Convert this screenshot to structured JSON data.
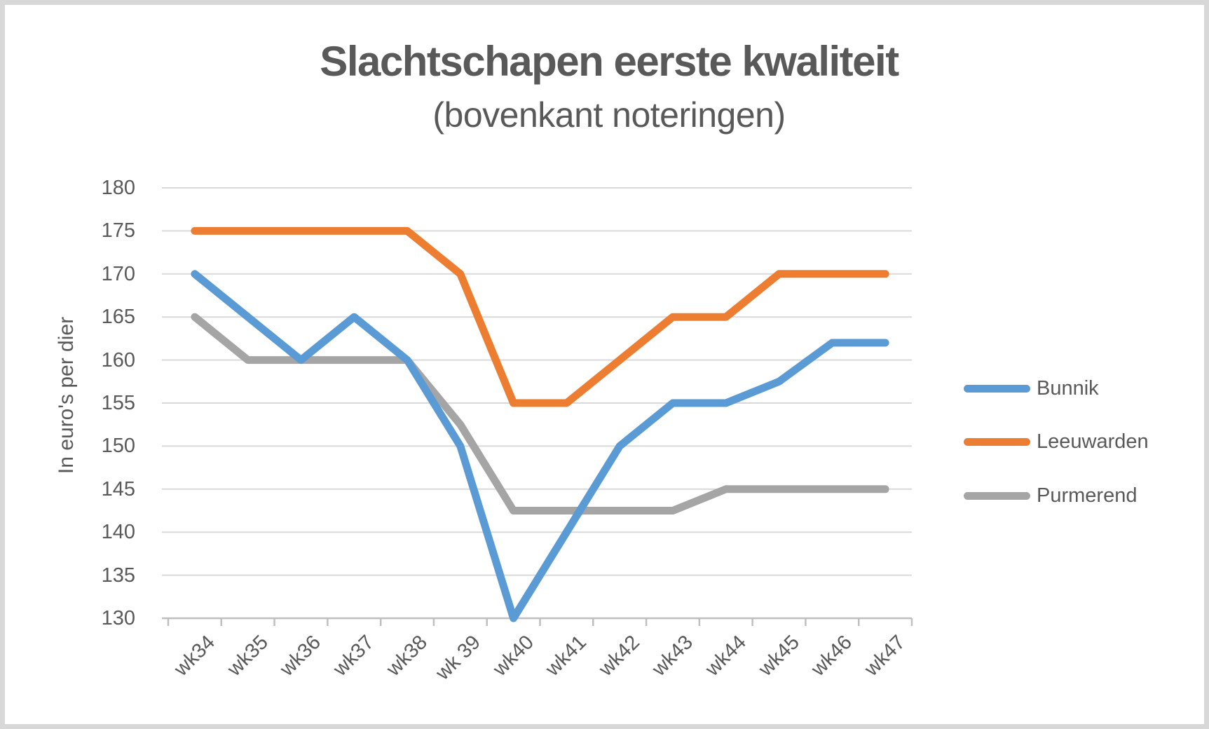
{
  "frame": {
    "background": "#FFFFFF",
    "border_color": "#D8D8D8"
  },
  "chart_data": {
    "type": "line",
    "title": "Slachtschapen eerste kwaliteit",
    "subtitle": "(bovenkant noteringen)",
    "y_axis_title": "In euro's per dier",
    "categories": [
      "wk34",
      "wk35",
      "wk36",
      "wk37",
      "wk38",
      "wk 39",
      "wk40",
      "wk41",
      "wk42",
      "wk43",
      "wk44",
      "wk45",
      "wk46",
      "wk47"
    ],
    "ylim": [
      130,
      180
    ],
    "ytick_step": 5,
    "yticks": [
      180,
      175,
      170,
      165,
      160,
      155,
      150,
      145,
      140,
      135,
      130
    ],
    "grid": true,
    "legend_position": "right",
    "series": [
      {
        "name": "Bunnik",
        "color": "#5B9BD5",
        "values": [
          170,
          165,
          160,
          165,
          160,
          150,
          130,
          140,
          150,
          155,
          155,
          157.5,
          162,
          162
        ]
      },
      {
        "name": "Leeuwarden",
        "color": "#ED7D31",
        "values": [
          175,
          175,
          175,
          175,
          175,
          170,
          155,
          155,
          160,
          165,
          165,
          170,
          170,
          170
        ]
      },
      {
        "name": "Purmerend",
        "color": "#A5A5A5",
        "values": [
          165,
          160,
          160,
          160,
          160,
          152.5,
          142.5,
          142.5,
          142.5,
          142.5,
          145,
          145,
          145,
          145
        ]
      }
    ],
    "styles": {
      "text_color": "#595959",
      "gridline_color": "#D9D9D9",
      "axis_line_color": "#BFBFBF",
      "line_width": 11
    }
  }
}
